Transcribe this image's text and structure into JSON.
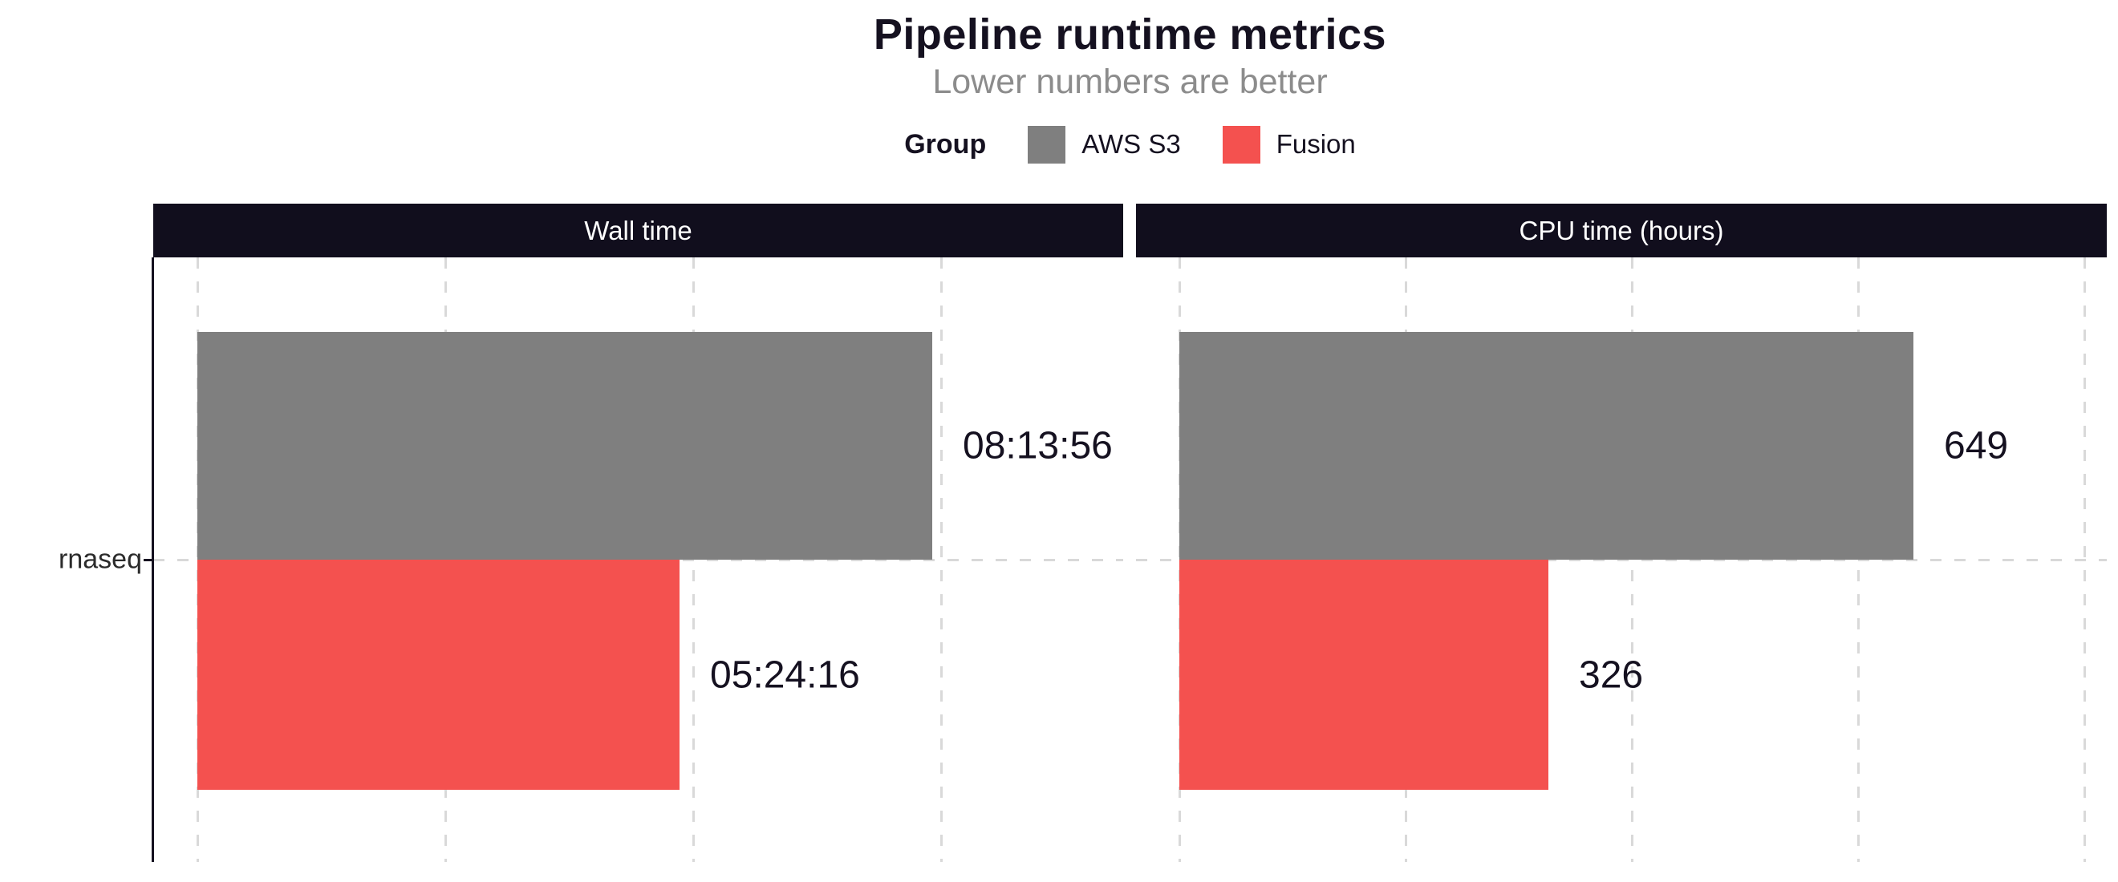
{
  "chart_data": {
    "type": "bar",
    "orientation": "horizontal",
    "title": "Pipeline runtime metrics",
    "subtitle": "Lower numbers are better",
    "legend": {
      "title": "Group",
      "position": "top",
      "entries": [
        {
          "label": "AWS S3",
          "color": "#7F7F7F"
        },
        {
          "label": "Fusion",
          "color": "#F4514F"
        }
      ]
    },
    "categories": [
      "rnaseq"
    ],
    "facets": [
      {
        "label": "Wall time",
        "bars": [
          {
            "group": "AWS S3",
            "value_label": "08:13:56"
          },
          {
            "group": "Fusion",
            "value_label": "05:24:16"
          }
        ],
        "x_axis": {
          "min": 0,
          "gridline_interval": 10000,
          "unit": "seconds",
          "max_estimate": 37000,
          "tick_labels_shown": false
        }
      },
      {
        "label": "CPU time (hours)",
        "bars": [
          {
            "group": "AWS S3",
            "value_label": "649"
          },
          {
            "group": "Fusion",
            "value_label": "326"
          }
        ],
        "x_axis": {
          "min": 0,
          "gridline_interval": 200,
          "unit": "hours",
          "max_estimate": 820,
          "tick_labels_shown": false
        }
      }
    ],
    "grid": {
      "style": "dashed",
      "color": "#D9D9D9",
      "horizontal": true,
      "vertical": true
    },
    "colors": {
      "strip_background": "#110E1D",
      "strip_text": "#FFFFFF",
      "title_text": "#151120",
      "subtitle_text": "#8C8C8C",
      "axis_text": "#2B2B2B",
      "axis_line": "#151120"
    }
  }
}
